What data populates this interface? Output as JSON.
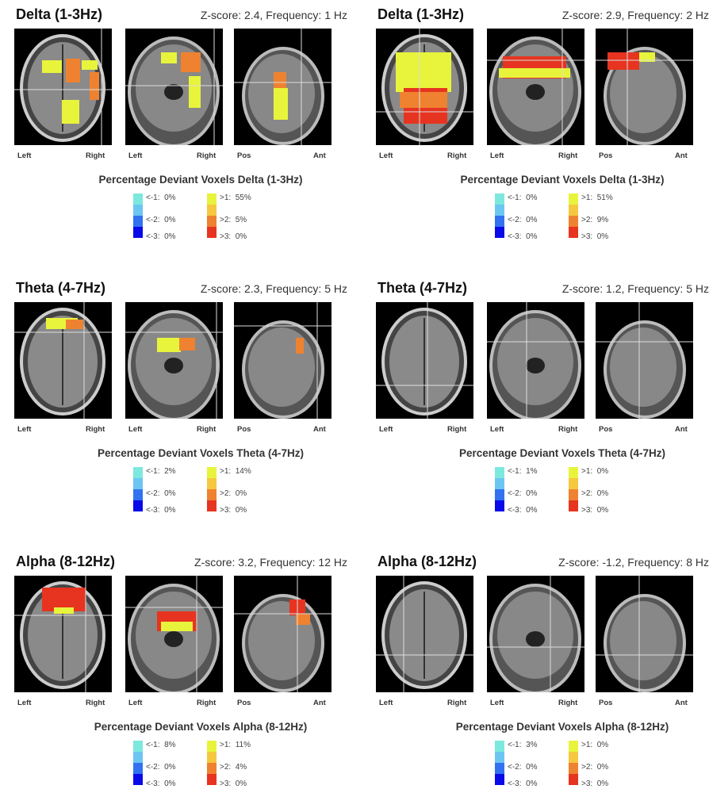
{
  "colors": {
    "neg": [
      "#7de8de",
      "#6cc6f2",
      "#3272f0",
      "#0a0ae8"
    ],
    "pos": [
      "#e8f43c",
      "#f6c840",
      "#ef8230",
      "#e63420"
    ]
  },
  "panels": [
    {
      "title": "Delta (1-3Hz)",
      "zscore": "Z-score: 2.4, Frequency: 1 Hz",
      "views": [
        [
          "Left",
          "Right"
        ],
        [
          "Left",
          "Right"
        ],
        [
          "Pos",
          "Ant"
        ]
      ],
      "legend_title": "Percentage Deviant Voxels Delta (1-3Hz)",
      "neg": [
        "<-1:  0%",
        "<-2:  0%",
        "<-3:  0%"
      ],
      "pos": [
        ">1:  55%",
        ">2:  5%",
        ">3:  0%"
      ]
    },
    {
      "title": "Delta (1-3Hz)",
      "zscore": "Z-score: 2.9, Frequency: 2 Hz",
      "views": [
        [
          "Left",
          "Right"
        ],
        [
          "Left",
          "Right"
        ],
        [
          "Pos",
          "Ant"
        ]
      ],
      "legend_title": "Percentage Deviant Voxels Delta (1-3Hz)",
      "neg": [
        "<-1:  0%",
        "<-2:  0%",
        "<-3:  0%"
      ],
      "pos": [
        ">1:  51%",
        ">2:  9%",
        ">3:  0%"
      ]
    },
    {
      "title": "Theta (4-7Hz)",
      "zscore": "Z-score: 2.3, Frequency: 5 Hz",
      "views": [
        [
          "Left",
          "Right"
        ],
        [
          "Left",
          "Right"
        ],
        [
          "Pos",
          "Ant"
        ]
      ],
      "legend_title": "Percentage Deviant Voxels Theta (4-7Hz)",
      "neg": [
        "<-1:  2%",
        "<-2:  0%",
        "<-3:  0%"
      ],
      "pos": [
        ">1:  14%",
        ">2:  0%",
        ">3:  0%"
      ]
    },
    {
      "title": "Theta (4-7Hz)",
      "zscore": "Z-score: 1.2, Frequency: 5 Hz",
      "views": [
        [
          "Left",
          "Right"
        ],
        [
          "Left",
          "Right"
        ],
        [
          "Pos",
          "Ant"
        ]
      ],
      "legend_title": "Percentage Deviant Voxels Theta (4-7Hz)",
      "neg": [
        "<-1:  1%",
        "<-2:  0%",
        "<-3:  0%"
      ],
      "pos": [
        ">1:  0%",
        ">2:  0%",
        ">3:  0%"
      ]
    },
    {
      "title": "Alpha (8-12Hz)",
      "zscore": "Z-score: 3.2, Frequency: 12 Hz",
      "views": [
        [
          "Left",
          "Right"
        ],
        [
          "Left",
          "Right"
        ],
        [
          "Pos",
          "Ant"
        ]
      ],
      "legend_title": "Percentage Deviant Voxels Alpha (8-12Hz)",
      "neg": [
        "<-1:  8%",
        "<-2:  0%",
        "<-3:  0%"
      ],
      "pos": [
        ">1:  11%",
        ">2:  4%",
        ">3:  0%"
      ]
    },
    {
      "title": "Alpha (8-12Hz)",
      "zscore": "Z-score: -1.2, Frequency: 8 Hz",
      "views": [
        [
          "Left",
          "Right"
        ],
        [
          "Left",
          "Right"
        ],
        [
          "Pos",
          "Ant"
        ]
      ],
      "legend_title": "Percentage Deviant Voxels Alpha (8-12Hz)",
      "neg": [
        "<-1:  3%",
        "<-2:  0%",
        "<-3:  0%"
      ],
      "pos": [
        ">1:  0%",
        ">2:  0%",
        ">3:  0%"
      ]
    }
  ]
}
